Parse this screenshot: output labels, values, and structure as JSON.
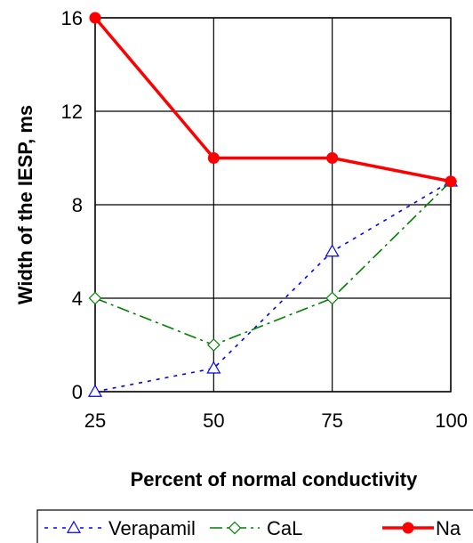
{
  "chart_data": {
    "type": "line",
    "x": [
      25,
      50,
      75,
      100
    ],
    "xlabel": "Percent of normal conductivity",
    "ylabel": "Width of the IESP, ms",
    "xlim": [
      25,
      100
    ],
    "ylim": [
      0,
      16
    ],
    "xticks": [
      "25",
      "50",
      "75",
      "100"
    ],
    "yticks": [
      "0",
      "4",
      "8",
      "12",
      "16"
    ],
    "grid": true,
    "legend_position": "bottom",
    "series": [
      {
        "name": "Verapamil",
        "values": [
          0,
          1,
          6,
          9
        ],
        "color": "#0000ff",
        "dash": "dotted",
        "marker": "triangle-open"
      },
      {
        "name": "CaL",
        "values": [
          4,
          2,
          4,
          9
        ],
        "color": "#008000",
        "dash": "dashdot",
        "marker": "diamond-open"
      },
      {
        "name": "Na",
        "values": [
          16,
          10,
          10,
          9
        ],
        "color": "#ff0000",
        "dash": "solid",
        "marker": "circle-filled"
      }
    ]
  }
}
